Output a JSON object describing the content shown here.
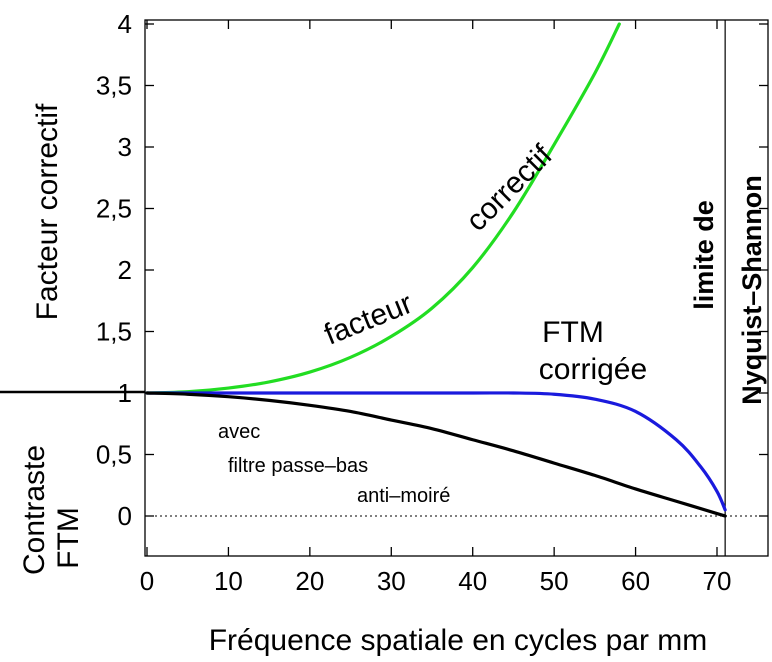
{
  "chart_data": {
    "type": "line",
    "xlabel": "Fréquence spatiale en cycles par mm",
    "ylabel_upper": "Facteur correctif",
    "ylabel_lower": [
      "Contraste",
      "FTM"
    ],
    "xlim": [
      0,
      77
    ],
    "ylim": [
      -0.3,
      4
    ],
    "x_ticks": [
      0,
      10,
      20,
      30,
      40,
      50,
      60,
      70
    ],
    "x_tick_labels": [
      "0",
      "10",
      "20",
      "30",
      "40",
      "50",
      "60",
      "70"
    ],
    "y_ticks": [
      0,
      0.5,
      1,
      1.5,
      2,
      2.5,
      3,
      3.5,
      4
    ],
    "y_tick_labels": [
      "0",
      "0,5",
      "1",
      "1,5",
      "2",
      "2,5",
      "3",
      "3,5",
      "4"
    ],
    "vertical_line": {
      "x": 71,
      "label_line1": "limite de",
      "label_line2": "Nyquist–Shannon"
    },
    "reference_line_y": 0,
    "series": [
      {
        "key": "facteur",
        "color": "#22dd22",
        "x": [
          0,
          5,
          10,
          15,
          20,
          25,
          30,
          35,
          40,
          45,
          50,
          55,
          58
        ],
        "y": [
          1.0,
          1.01,
          1.04,
          1.09,
          1.17,
          1.29,
          1.46,
          1.69,
          2.02,
          2.47,
          3.02,
          3.6,
          4.0
        ]
      },
      {
        "key": "ftm_corrigee",
        "color": "#1a1add",
        "x": [
          0,
          5,
          10,
          20,
          30,
          40,
          45,
          50,
          55,
          60,
          65,
          68,
          70,
          71
        ],
        "y": [
          1.0,
          1.0,
          1.0,
          1.0,
          1.0,
          1.0,
          1.0,
          0.99,
          0.95,
          0.85,
          0.62,
          0.4,
          0.2,
          0.05
        ]
      },
      {
        "key": "avec_filtre",
        "color": "#000000",
        "x": [
          0,
          5,
          10,
          15,
          20,
          25,
          30,
          35,
          40,
          45,
          50,
          55,
          60,
          65,
          70,
          71
        ],
        "y": [
          1.0,
          0.99,
          0.97,
          0.94,
          0.9,
          0.85,
          0.78,
          0.71,
          0.62,
          0.53,
          0.43,
          0.33,
          0.22,
          0.12,
          0.02,
          0.0
        ]
      }
    ],
    "annotations": {
      "facteur_word": "facteur",
      "correctif_word": "correctif",
      "ftm_line1": "FTM",
      "ftm_line2": "corrigée",
      "avec": "avec",
      "filtre": "filtre passe–bas",
      "anti": "anti–moiré"
    }
  }
}
